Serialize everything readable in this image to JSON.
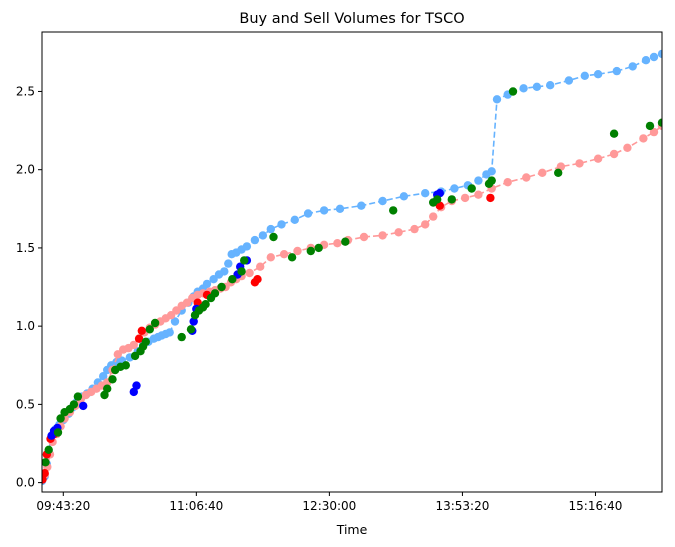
{
  "chart_data": {
    "type": "line",
    "title": "Buy and Sell Volumes for TSCO",
    "xlabel": "Time",
    "ylabel": "",
    "x_ticks": [
      "09:43:20",
      "11:06:40",
      "12:30:00",
      "13:53:20",
      "15:16:40"
    ],
    "x_tick_seconds": [
      35000,
      40000,
      45000,
      50000,
      55000
    ],
    "xlim_seconds": [
      34200,
      57500
    ],
    "y_ticks": [
      "0.0",
      "0.5",
      "1.0",
      "1.5",
      "2.0",
      "2.5"
    ],
    "y_tick_values": [
      0.0,
      0.5,
      1.0,
      1.5,
      2.0,
      2.5
    ],
    "ylim": [
      -0.06,
      2.88
    ],
    "grid": false,
    "legend": "none",
    "colors": {
      "buy_line": "#66b3ff",
      "sell_line": "#ff9999",
      "buy_highlight": "#0000ff",
      "sell_highlight": "#ff0000",
      "trade_marker": "#008000"
    },
    "series": [
      {
        "role": "buy",
        "color": "#66b3ff",
        "x": [
          34200,
          34300,
          34380,
          34450,
          34560,
          34700,
          34850,
          35000,
          35200,
          35350,
          35520,
          35700,
          35900,
          36100,
          36300,
          36500,
          36650,
          36800,
          37000,
          37200,
          37500,
          37800,
          38000,
          38200,
          38400,
          38560,
          38700,
          38850,
          39000,
          39200,
          39450,
          39700,
          39900,
          40050,
          40250,
          40400,
          40650,
          40850,
          41050,
          41200,
          41330,
          41500,
          41700,
          41900,
          42200,
          42500,
          42800,
          43200,
          43700,
          44200,
          44800,
          45400,
          46200,
          47000,
          47800,
          48600,
          49200,
          49700,
          50200,
          50600,
          50900,
          51100,
          51300,
          51700,
          52300,
          52800,
          53300,
          54000,
          54600,
          55100,
          55800,
          56400,
          56900,
          57200,
          57500
        ],
        "y": [
          0.01,
          0.04,
          0.12,
          0.2,
          0.3,
          0.34,
          0.37,
          0.4,
          0.44,
          0.48,
          0.52,
          0.55,
          0.57,
          0.6,
          0.64,
          0.68,
          0.72,
          0.75,
          0.77,
          0.78,
          0.8,
          0.84,
          0.88,
          0.9,
          0.92,
          0.93,
          0.94,
          0.95,
          0.96,
          1.03,
          1.1,
          1.15,
          1.19,
          1.22,
          1.24,
          1.27,
          1.3,
          1.33,
          1.35,
          1.4,
          1.46,
          1.47,
          1.49,
          1.51,
          1.55,
          1.58,
          1.62,
          1.65,
          1.68,
          1.72,
          1.74,
          1.75,
          1.77,
          1.8,
          1.83,
          1.85,
          1.86,
          1.88,
          1.9,
          1.93,
          1.97,
          1.99,
          2.45,
          2.48,
          2.52,
          2.53,
          2.54,
          2.57,
          2.6,
          2.61,
          2.63,
          2.66,
          2.7,
          2.72,
          2.74
        ]
      },
      {
        "role": "sell",
        "color": "#ff9999",
        "x": [
          34200,
          34300,
          34400,
          34500,
          34600,
          34750,
          34900,
          35050,
          35250,
          35450,
          35650,
          35850,
          36050,
          36250,
          36450,
          36650,
          36850,
          37050,
          37250,
          37450,
          37650,
          37850,
          38050,
          38250,
          38450,
          38650,
          38850,
          39050,
          39250,
          39450,
          39650,
          39850,
          40050,
          40250,
          40500,
          40700,
          40900,
          41100,
          41300,
          41500,
          41700,
          42000,
          42400,
          42800,
          43300,
          43800,
          44300,
          44800,
          45300,
          45700,
          46300,
          47000,
          47600,
          48200,
          48600,
          48900,
          49200,
          49600,
          50100,
          50600,
          51100,
          51700,
          52400,
          53000,
          53700,
          54400,
          55100,
          55700,
          56200,
          56800,
          57200,
          57500
        ],
        "y": [
          0.02,
          0.05,
          0.1,
          0.18,
          0.26,
          0.31,
          0.36,
          0.41,
          0.45,
          0.49,
          0.53,
          0.56,
          0.58,
          0.6,
          0.62,
          0.64,
          0.72,
          0.82,
          0.85,
          0.86,
          0.88,
          0.92,
          0.96,
          0.99,
          1.01,
          1.03,
          1.05,
          1.07,
          1.1,
          1.13,
          1.15,
          1.18,
          1.2,
          1.21,
          1.22,
          1.23,
          1.24,
          1.25,
          1.28,
          1.3,
          1.32,
          1.34,
          1.38,
          1.44,
          1.46,
          1.48,
          1.5,
          1.52,
          1.53,
          1.55,
          1.57,
          1.58,
          1.6,
          1.62,
          1.65,
          1.7,
          1.76,
          1.8,
          1.82,
          1.84,
          1.88,
          1.92,
          1.95,
          1.98,
          2.02,
          2.04,
          2.07,
          2.1,
          2.14,
          2.2,
          2.24,
          2.28
        ]
      }
    ],
    "highlight_points": [
      {
        "color": "#ff0000",
        "x": [
          34220,
          34300,
          34380,
          34520,
          34650,
          37850,
          37950,
          40050,
          40400,
          42200,
          42300,
          49150,
          51050
        ],
        "y": [
          0.02,
          0.06,
          0.18,
          0.28,
          0.31,
          0.92,
          0.97,
          1.15,
          1.2,
          1.28,
          1.3,
          1.77,
          1.82
        ]
      },
      {
        "color": "#0000ff",
        "x": [
          34560,
          34650,
          34780,
          35750,
          37650,
          37750,
          39850,
          39900,
          40000,
          41550,
          41650,
          41900,
          49050,
          49150
        ],
        "y": [
          0.3,
          0.33,
          0.35,
          0.49,
          0.58,
          0.62,
          0.97,
          1.03,
          1.11,
          1.33,
          1.38,
          1.42,
          1.84,
          1.85
        ]
      },
      {
        "color": "#008000",
        "x": [
          34330,
          34450,
          34800,
          34900,
          35050,
          35250,
          35400,
          35550,
          36550,
          36650,
          36850,
          36950,
          37150,
          37350,
          37700,
          37900,
          38000,
          38100,
          38250,
          38450,
          39450,
          39800,
          39950,
          40100,
          40250,
          40350,
          40550,
          40700,
          40950,
          41350,
          41700,
          41800,
          42900,
          43600,
          44300,
          44600,
          45600,
          47400,
          48900,
          49050,
          49600,
          50350,
          51000,
          51100,
          51900,
          53600,
          55700,
          57050,
          57500
        ],
        "y": [
          0.13,
          0.21,
          0.32,
          0.41,
          0.45,
          0.47,
          0.5,
          0.55,
          0.56,
          0.6,
          0.66,
          0.72,
          0.74,
          0.75,
          0.81,
          0.84,
          0.87,
          0.9,
          0.98,
          1.02,
          0.93,
          0.98,
          1.07,
          1.1,
          1.12,
          1.14,
          1.18,
          1.21,
          1.25,
          1.3,
          1.35,
          1.42,
          1.57,
          1.44,
          1.48,
          1.5,
          1.54,
          1.74,
          1.79,
          1.81,
          1.81,
          1.88,
          1.91,
          1.93,
          2.5,
          1.98,
          2.23,
          2.28,
          2.3
        ]
      }
    ]
  }
}
